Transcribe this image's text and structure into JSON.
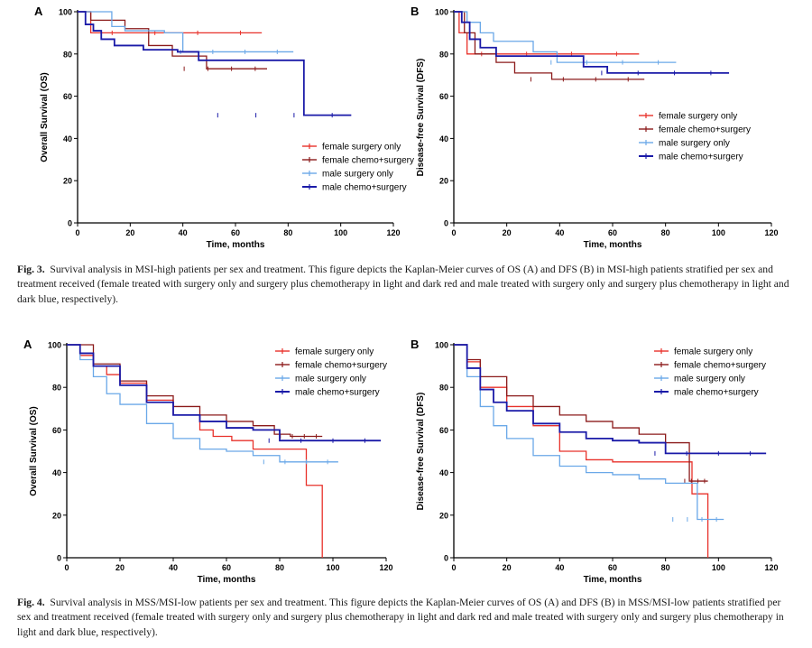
{
  "figures": [
    {
      "id": "fig3",
      "label": "Fig. 3.",
      "caption": "Survival analysis in MSI-high patients per sex and treatment. This figure depicts the Kaplan-Meier curves of OS (A) and DFS (B) in MSI-high patients stratified per sex and treatment received (female treated with surgery only and surgery plus chemotherapy in light and dark red and male treated with surgery only and surgery plus chemotherapy in light and dark blue, respectively)."
    },
    {
      "id": "fig4",
      "label": "Fig. 4.",
      "caption": "Survival analysis in MSS/MSI-low patients per sex and treatment. This figure depicts the Kaplan-Meier curves of OS (A) and DFS (B) in MSS/MSI-low patients stratified per sex and treatment received (female treated with surgery only and surgery plus chemotherapy in light and dark red and male treated with surgery only and surgery plus chemotherapy in light and dark blue, respectively)."
    }
  ],
  "colors": {
    "female_surgery_only": "#e8312a",
    "female_chemo_surgery": "#8b1a1a",
    "male_surgery_only": "#6aa8e8",
    "male_chemo_surgery": "#1a1aa8"
  },
  "chart_data": [
    {
      "type": "line",
      "panel": "A",
      "figure": "fig3",
      "xlabel": "Time, months",
      "ylabel": "Overall Survival (OS)",
      "xlim": [
        0,
        120
      ],
      "ylim": [
        0,
        100
      ],
      "xticks": [
        0,
        20,
        40,
        60,
        80,
        100,
        120
      ],
      "yticks": [
        0,
        20,
        40,
        60,
        80,
        100
      ],
      "legend": "middle-right",
      "series": [
        {
          "name": "female surgery only",
          "color": "#e8312a",
          "x": [
            0,
            3,
            5,
            36,
            70
          ],
          "y": [
            100,
            100,
            90,
            90,
            90
          ]
        },
        {
          "name": "female chemo+surgery",
          "color": "#8b1a1a",
          "x": [
            0,
            5,
            18,
            27,
            36,
            49,
            72
          ],
          "y": [
            100,
            96,
            92,
            84,
            79,
            73,
            73
          ]
        },
        {
          "name": "male surgery only",
          "color": "#6aa8e8",
          "x": [
            0,
            13,
            18,
            33,
            40,
            82
          ],
          "y": [
            100,
            93,
            91,
            90,
            81,
            81
          ]
        },
        {
          "name": "male chemo+surgery",
          "color": "#1a1aa8",
          "x": [
            0,
            3,
            6,
            9,
            14,
            25,
            38,
            46,
            86,
            104
          ],
          "y": [
            100,
            94,
            91,
            87,
            84,
            82,
            81,
            77,
            51,
            51
          ]
        }
      ]
    },
    {
      "type": "line",
      "panel": "B",
      "figure": "fig3",
      "xlabel": "Time, months",
      "ylabel": "Disease-free Survival (DFS)",
      "xlim": [
        0,
        120
      ],
      "ylim": [
        0,
        100
      ],
      "xticks": [
        0,
        20,
        40,
        60,
        80,
        100,
        120
      ],
      "yticks": [
        0,
        20,
        40,
        60,
        80,
        100
      ],
      "legend": "middle-right",
      "series": [
        {
          "name": "female surgery only",
          "color": "#e8312a",
          "x": [
            0,
            2,
            5,
            70
          ],
          "y": [
            100,
            90,
            80,
            80
          ]
        },
        {
          "name": "female chemo+surgery",
          "color": "#8b1a1a",
          "x": [
            0,
            4,
            8,
            16,
            23,
            37,
            72
          ],
          "y": [
            100,
            90,
            80,
            76,
            71,
            68,
            68
          ]
        },
        {
          "name": "male surgery only",
          "color": "#6aa8e8",
          "x": [
            0,
            5,
            10,
            15,
            30,
            39,
            84
          ],
          "y": [
            100,
            95,
            90,
            86,
            81,
            76,
            76
          ]
        },
        {
          "name": "male chemo+surgery",
          "color": "#1a1aa8",
          "x": [
            0,
            3,
            6,
            10,
            16,
            41,
            49,
            58,
            104
          ],
          "y": [
            100,
            95,
            87,
            83,
            79,
            79,
            74,
            71,
            71
          ]
        }
      ]
    },
    {
      "type": "line",
      "panel": "A",
      "figure": "fig4",
      "xlabel": "Time, months",
      "ylabel": "Overall Survival (OS)",
      "xlim": [
        0,
        120
      ],
      "ylim": [
        0,
        100
      ],
      "xticks": [
        0,
        20,
        40,
        60,
        80,
        100,
        120
      ],
      "yticks": [
        0,
        20,
        40,
        60,
        80,
        100
      ],
      "legend": "top-right",
      "series": [
        {
          "name": "female surgery only",
          "color": "#e8312a",
          "x": [
            0,
            5,
            10,
            15,
            20,
            30,
            40,
            50,
            55,
            62,
            70,
            80,
            90,
            96,
            96
          ],
          "y": [
            100,
            95,
            90,
            86,
            82,
            74,
            67,
            60,
            57,
            55,
            51,
            51,
            34,
            34,
            0
          ]
        },
        {
          "name": "female chemo+surgery",
          "color": "#8b1a1a",
          "x": [
            0,
            10,
            20,
            30,
            40,
            50,
            60,
            70,
            78,
            84,
            96
          ],
          "y": [
            100,
            91,
            83,
            76,
            71,
            67,
            64,
            62,
            58,
            57,
            57
          ]
        },
        {
          "name": "male surgery only",
          "color": "#6aa8e8",
          "x": [
            0,
            5,
            10,
            15,
            20,
            30,
            40,
            50,
            60,
            70,
            80,
            102
          ],
          "y": [
            100,
            93,
            85,
            77,
            72,
            63,
            56,
            51,
            50,
            48,
            45,
            45
          ]
        },
        {
          "name": "male chemo+surgery",
          "color": "#1a1aa8",
          "x": [
            0,
            5,
            10,
            20,
            30,
            40,
            50,
            60,
            70,
            80,
            118
          ],
          "y": [
            100,
            96,
            90,
            81,
            73,
            67,
            64,
            61,
            60,
            55,
            55
          ]
        }
      ]
    },
    {
      "type": "line",
      "panel": "B",
      "figure": "fig4",
      "xlabel": "Time, months",
      "ylabel": "Disease-free Survival (DFS)",
      "xlim": [
        0,
        120
      ],
      "ylim": [
        0,
        100
      ],
      "xticks": [
        0,
        20,
        40,
        60,
        80,
        100,
        120
      ],
      "yticks": [
        0,
        20,
        40,
        60,
        80,
        100
      ],
      "legend": "top-right",
      "series": [
        {
          "name": "female surgery only",
          "color": "#e8312a",
          "x": [
            0,
            5,
            10,
            20,
            30,
            40,
            50,
            60,
            80,
            90,
            96,
            96
          ],
          "y": [
            100,
            92,
            80,
            71,
            62,
            50,
            46,
            45,
            45,
            30,
            30,
            0
          ]
        },
        {
          "name": "female chemo+surgery",
          "color": "#8b1a1a",
          "x": [
            0,
            5,
            10,
            20,
            30,
            40,
            50,
            60,
            70,
            80,
            86,
            89,
            96
          ],
          "y": [
            100,
            93,
            85,
            76,
            71,
            67,
            64,
            61,
            58,
            54,
            54,
            36,
            36
          ]
        },
        {
          "name": "male surgery only",
          "color": "#6aa8e8",
          "x": [
            0,
            5,
            10,
            15,
            20,
            30,
            40,
            50,
            60,
            70,
            80,
            92,
            102
          ],
          "y": [
            100,
            85,
            71,
            62,
            56,
            48,
            43,
            40,
            39,
            37,
            35,
            18,
            18
          ]
        },
        {
          "name": "male chemo+surgery",
          "color": "#1a1aa8",
          "x": [
            0,
            5,
            10,
            15,
            20,
            30,
            40,
            50,
            60,
            70,
            80,
            118
          ],
          "y": [
            100,
            89,
            79,
            73,
            69,
            63,
            59,
            56,
            55,
            54,
            49,
            49
          ]
        }
      ]
    }
  ]
}
